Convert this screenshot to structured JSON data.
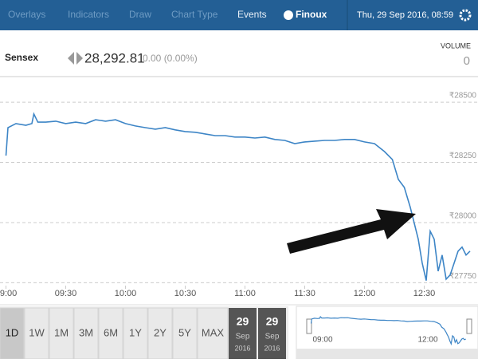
{
  "toolbar": {
    "menu": [
      "Overlays",
      "Indicators",
      "Draw",
      "Chart Type",
      "Events"
    ],
    "brand": "Finoux",
    "datetime": "Thu, 29 Sep 2016, 08:59"
  },
  "quote": {
    "symbol": "Sensex",
    "price": "28,292.81",
    "change": "0.00 (0.00%)",
    "volume_label": "VOLUME",
    "volume": "0"
  },
  "chart_data": {
    "type": "line",
    "x": [
      "09:00",
      "09:01",
      "09:05",
      "09:10",
      "09:13",
      "09:14",
      "09:16",
      "09:20",
      "09:25",
      "09:30",
      "09:35",
      "09:40",
      "09:45",
      "09:50",
      "09:55",
      "10:00",
      "10:05",
      "10:10",
      "10:15",
      "10:20",
      "10:25",
      "10:30",
      "10:35",
      "10:40",
      "10:45",
      "10:50",
      "10:55",
      "11:00",
      "11:05",
      "11:10",
      "11:15",
      "11:20",
      "11:25",
      "11:30",
      "11:35",
      "11:40",
      "11:45",
      "11:50",
      "11:55",
      "12:00",
      "12:05",
      "12:10",
      "12:14",
      "12:17",
      "12:20",
      "12:23",
      "12:25",
      "12:27",
      "12:29",
      "12:31",
      "12:33",
      "12:35",
      "12:37",
      "12:39",
      "12:41",
      "12:43",
      "12:45",
      "12:47",
      "12:49",
      "12:51",
      "12:53"
    ],
    "series": [
      {
        "name": "Sensex",
        "color": "#3d85c6",
        "values": [
          28278,
          28394,
          28411,
          28404,
          28411,
          28451,
          28417,
          28417,
          28421,
          28411,
          28417,
          28411,
          28427,
          28421,
          28427,
          28411,
          28401,
          28394,
          28388,
          28394,
          28385,
          28378,
          28375,
          28368,
          28361,
          28361,
          28355,
          28355,
          28351,
          28355,
          28345,
          28341,
          28328,
          28335,
          28338,
          28341,
          28341,
          28345,
          28345,
          28335,
          28328,
          28295,
          28262,
          28179,
          28146,
          28063,
          27997,
          27931,
          27831,
          27759,
          27964,
          27931,
          27798,
          27865,
          27765,
          27782,
          27831,
          27881,
          27898,
          27865,
          27881
        ]
      }
    ],
    "xlim": [
      "08:57",
      "12:57"
    ],
    "xticks": [
      "09:00",
      "09:30",
      "10:00",
      "10:30",
      "11:00",
      "11:30",
      "12:00",
      "12:30"
    ],
    "ylim": [
      27738,
      28593
    ],
    "yticks": [
      {
        "value": 27750,
        "label": "₹27750"
      },
      {
        "value": 28000,
        "label": "₹28000"
      },
      {
        "value": 28250,
        "label": "₹28250"
      },
      {
        "value": 28500,
        "label": "₹28500"
      }
    ],
    "grid": true
  },
  "ranges": [
    "1D",
    "1W",
    "1M",
    "3M",
    "6M",
    "1Y",
    "2Y",
    "5Y",
    "MAX"
  ],
  "dates": [
    {
      "day": "29",
      "month": "Sep",
      "year": "2016"
    },
    {
      "day": "29",
      "month": "Sep",
      "year": "2016"
    }
  ]
}
